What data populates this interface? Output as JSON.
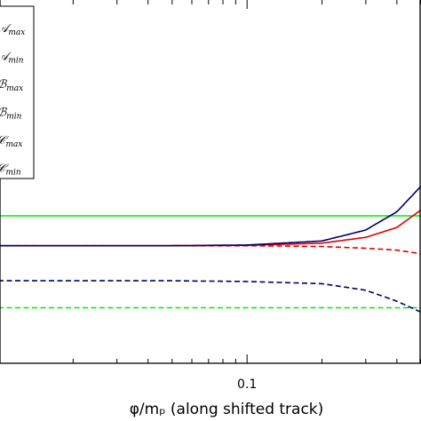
{
  "chart_data": {
    "type": "line",
    "xlabel": "φ/mₚ (along shifted track)",
    "ylabel": "",
    "x_scale": "log",
    "xlim": [
      0.01,
      0.5
    ],
    "ylim": [
      0,
      1
    ],
    "x_ticks": [
      {
        "value": 0.1,
        "label": "0.1"
      }
    ],
    "legend_position": "top-left",
    "grid": false,
    "series": [
      {
        "name": "𝒜max",
        "color": "#00ee00",
        "dash": "solid",
        "x": [
          0.01,
          0.05,
          0.1,
          0.2,
          0.3,
          0.5
        ],
        "y": [
          0.404,
          0.404,
          0.404,
          0.404,
          0.404,
          0.404
        ]
      },
      {
        "name": "𝒜min",
        "color": "#00ee00",
        "dash": "dashed",
        "x": [
          0.01,
          0.05,
          0.1,
          0.2,
          0.3,
          0.5
        ],
        "y": [
          0.152,
          0.152,
          0.152,
          0.152,
          0.152,
          0.152
        ]
      },
      {
        "name": "ℬmax",
        "color": "#dd0000",
        "dash": "solid",
        "x": [
          0.01,
          0.05,
          0.1,
          0.2,
          0.3,
          0.4,
          0.5
        ],
        "y": [
          0.322,
          0.322,
          0.323,
          0.329,
          0.345,
          0.372,
          0.42
        ]
      },
      {
        "name": "ℬmin",
        "color": "#dd0000",
        "dash": "dashed",
        "x": [
          0.01,
          0.05,
          0.1,
          0.2,
          0.3,
          0.4,
          0.5
        ],
        "y": [
          0.322,
          0.322,
          0.322,
          0.32,
          0.315,
          0.31,
          0.3
        ]
      },
      {
        "name": "𝒞max",
        "color": "#000066",
        "dash": "solid",
        "x": [
          0.01,
          0.05,
          0.1,
          0.2,
          0.3,
          0.4,
          0.5
        ],
        "y": [
          0.322,
          0.322,
          0.324,
          0.335,
          0.365,
          0.415,
          0.485
        ]
      },
      {
        "name": "𝒞min",
        "color": "#000066",
        "dash": "dashed",
        "x": [
          0.01,
          0.05,
          0.1,
          0.2,
          0.3,
          0.4,
          0.5
        ],
        "y": [
          0.226,
          0.226,
          0.224,
          0.218,
          0.2,
          0.17,
          0.14
        ]
      }
    ]
  }
}
